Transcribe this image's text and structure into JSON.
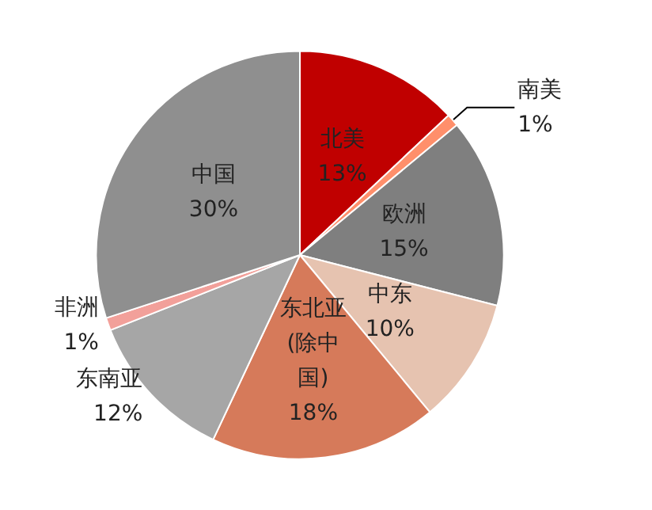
{
  "chart_data": {
    "type": "pie",
    "categories": [
      "北美",
      "南美",
      "欧洲",
      "中东",
      "东北亚(除中国)",
      "东南亚",
      "非洲",
      "中国"
    ],
    "values": [
      13,
      1,
      15,
      10,
      18,
      12,
      1,
      30
    ],
    "value_labels": [
      "13%",
      "1%",
      "15%",
      "10%",
      "18%",
      "12%",
      "1%",
      "30%"
    ],
    "colors": [
      "#c00000",
      "#ff8f6b",
      "#7f7f7f",
      "#e6c3b0",
      "#d67a5a",
      "#a6a6a6",
      "#f2a09a",
      "#8f8f8f"
    ],
    "legend": false
  }
}
